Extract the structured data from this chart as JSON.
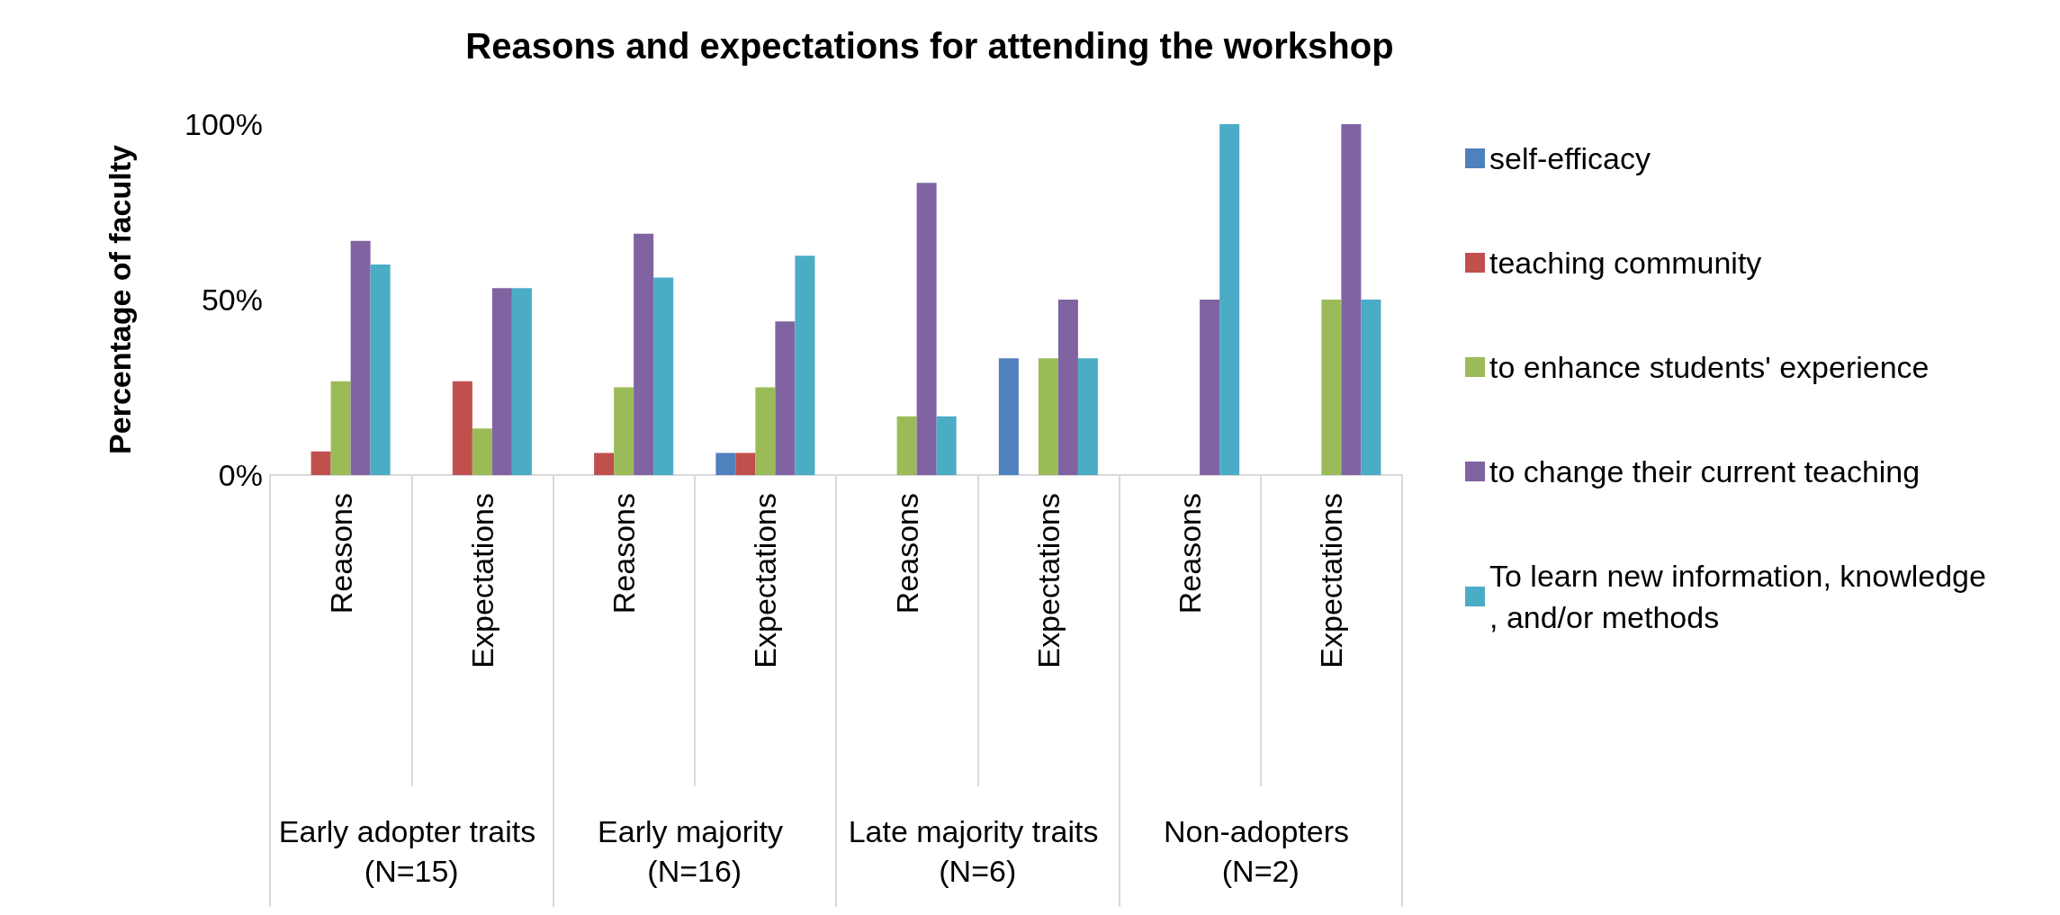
{
  "chart_data": {
    "type": "bar",
    "title": "Reasons and expectations for attending the workshop",
    "ylabel": "Percentage of faculty",
    "categories": [
      "Reasons",
      "Expectations",
      "Reasons",
      "Expectations",
      "Reasons",
      "Expectations",
      "Reasons",
      "Expectations"
    ],
    "annotations": [
      "Early adopter traits (N=15)",
      "Early majority (N=16)",
      "Late majority traits (N=6)",
      "Non-adopters (N=2)"
    ],
    "series": [
      {
        "name": "self-efficacy",
        "color": "#4f81bd",
        "values": [
          0,
          0,
          0,
          6.3,
          0,
          33.3,
          0,
          0
        ]
      },
      {
        "name": "teaching community",
        "color": "#c0504d",
        "values": [
          6.7,
          26.7,
          6.3,
          6.3,
          0,
          0,
          0,
          0
        ]
      },
      {
        "name": "to enhance students' experience",
        "color": "#9bbb59",
        "values": [
          26.7,
          13.3,
          25,
          25,
          16.7,
          33.3,
          0,
          50
        ]
      },
      {
        "name": "to change their current teaching",
        "color": "#8064a2",
        "values": [
          66.7,
          53.3,
          68.8,
          43.8,
          83.3,
          50,
          50,
          100
        ]
      },
      {
        "name": "To learn new information, knowledge, and/or methods",
        "color": "#4bacc6",
        "values": [
          60,
          53.3,
          56.3,
          62.5,
          16.7,
          33.3,
          100,
          50
        ]
      }
    ],
    "ylim": [
      0,
      100
    ],
    "yticks": [
      {
        "value": 0,
        "label": "0%"
      },
      {
        "value": 50,
        "label": "50%"
      },
      {
        "value": 100,
        "label": "100%"
      }
    ],
    "legend": "right"
  }
}
